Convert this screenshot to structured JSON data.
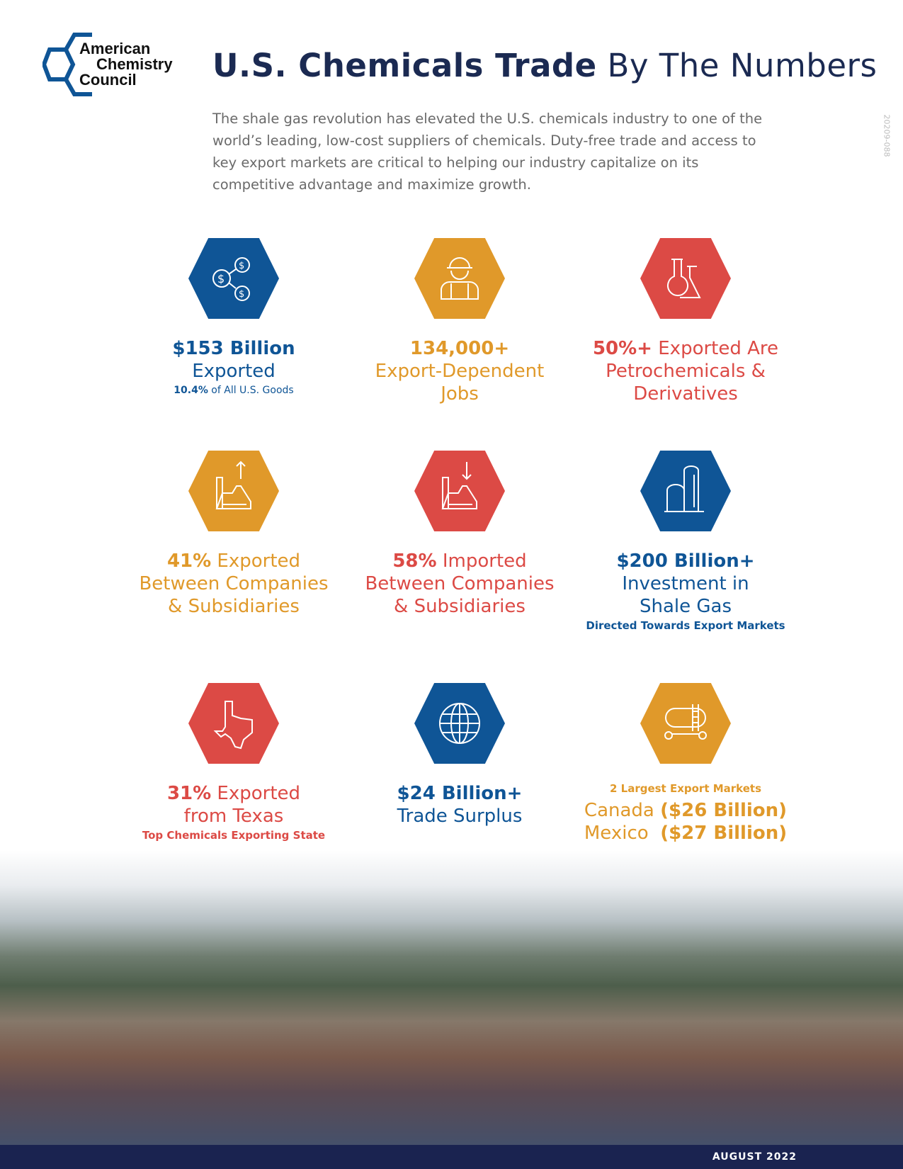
{
  "logo": {
    "name": "American Chemistry Council",
    "lines": [
      "American",
      "Chemistry",
      "Council"
    ]
  },
  "title": {
    "bold": "U.S. Chemicals Trade",
    "rest": " By The Numbers"
  },
  "intro": "The shale gas revolution has elevated the U.S. chemicals industry to one of the world’s leading, low-cost suppliers of chemicals. Duty-free trade and access to key export markets are critical to helping our industry capitalize on its competitive advantage and maximize growth.",
  "code": "20209-088",
  "colors": {
    "blue": "#0f5596",
    "orange": "#e0992a",
    "red": "#dc4a45",
    "navy": "#1b2a52"
  },
  "stats": [
    {
      "icon": "money-network-icon",
      "bold": "$153 Billion",
      "line2": "Exported",
      "sub_bold": "10.4%",
      "sub": " of All U.S. Goods"
    },
    {
      "icon": "worker-hardhat-icon",
      "bold": "134,000+",
      "line2": "Export-Dependent",
      "line3": "Jobs"
    },
    {
      "icon": "flasks-icon",
      "bold": "50%+",
      "line1_rest": " Exported Are",
      "line2": "Petrochemicals &",
      "line3": "Derivatives"
    },
    {
      "icon": "factory-arrow-up-icon",
      "bold": "41%",
      "line1_rest": " Exported",
      "line2": "Between Companies",
      "line3": "& Subsidiaries"
    },
    {
      "icon": "factory-arrow-down-icon",
      "bold": "58%",
      "line1_rest": " Imported",
      "line2": "Between Companies",
      "line3": "& Subsidiaries"
    },
    {
      "icon": "storage-tank-icon",
      "bold": "$200 Billion+",
      "line2": "Investment in",
      "line3": "Shale Gas",
      "sub": "Directed Towards Export Markets"
    },
    {
      "icon": "texas-map-icon",
      "bold": "31%",
      "line1_rest": " Exported",
      "line2": "from Texas",
      "sub": "Top Chemicals Exporting State"
    },
    {
      "icon": "globe-icon",
      "bold": "$24 Billion+",
      "line2": "Trade Surplus"
    },
    {
      "icon": "tank-car-icon",
      "sub": "2 Largest Export Markets",
      "markets": [
        {
          "name": "Canada",
          "value": "($26 Billion)"
        },
        {
          "name": "Mexico",
          "value": "($27 Billion)"
        }
      ]
    }
  ],
  "footer": {
    "date": "AUGUST 2022"
  }
}
